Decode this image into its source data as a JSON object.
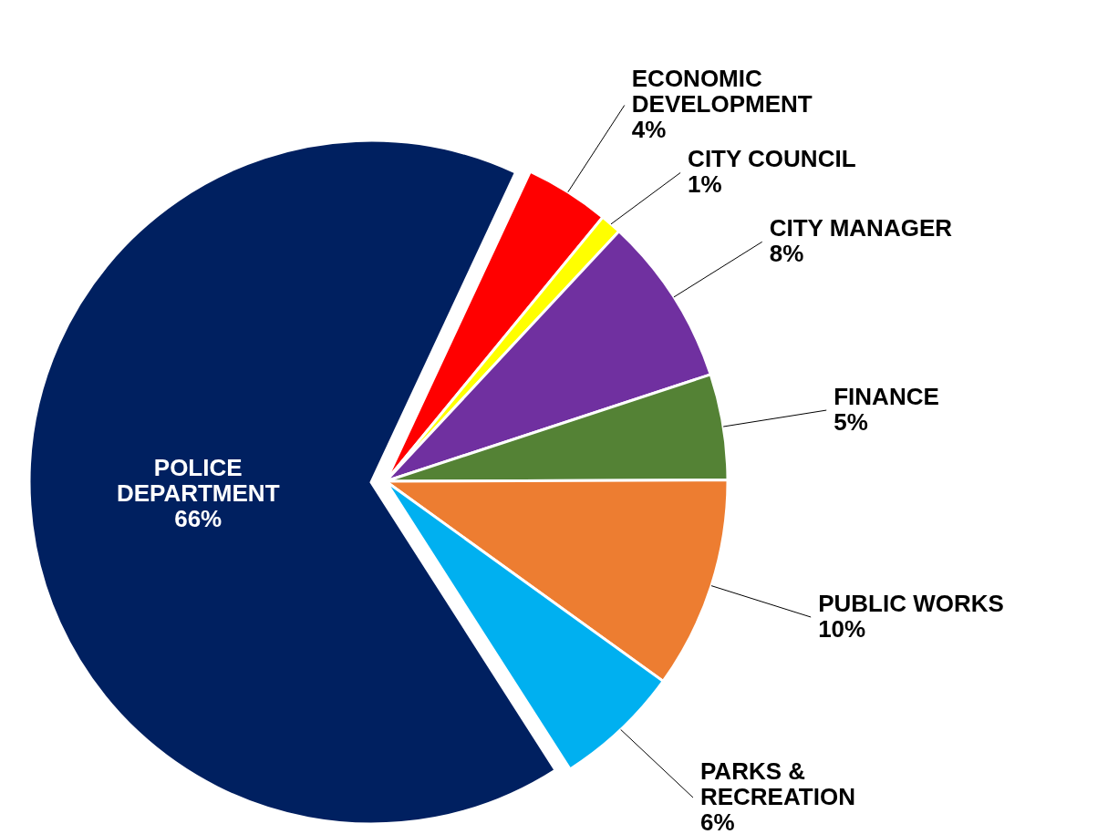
{
  "chart_data": {
    "type": "pie",
    "categories": [
      "ECONOMIC\nDEVELOPMENT",
      "CITY COUNCIL",
      "CITY MANAGER",
      "FINANCE",
      "PUBLIC WORKS",
      "PARKS &\nRECREATION",
      "POLICE\nDEPARTMENT"
    ],
    "values": [
      4,
      1,
      8,
      5,
      10,
      6,
      66
    ],
    "value_labels": [
      "4%",
      "1%",
      "8%",
      "5%",
      "10%",
      "6%",
      "66%"
    ],
    "colors": [
      "#ff0000",
      "#ffff00",
      "#7030a0",
      "#548235",
      "#ed7d31",
      "#00b0f0",
      "#002060"
    ]
  }
}
